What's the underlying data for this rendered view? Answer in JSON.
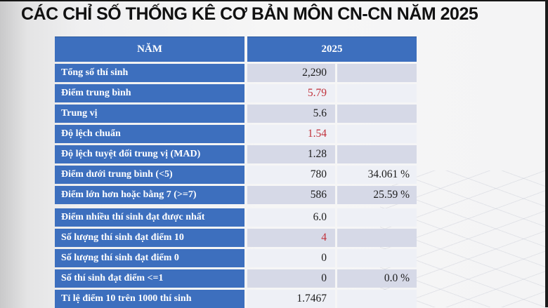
{
  "title": "CÁC CHỈ SỐ THỐNG KÊ CƠ BẢN MÔN CN-CN NĂM 2025",
  "colors": {
    "header_blue": "#3d6fbe",
    "band_dark": "#d6d9e7",
    "band_light": "#eef0f6",
    "highlight_red": "#c0303a"
  },
  "table": {
    "header": {
      "label": "NĂM",
      "value": "2025"
    },
    "rows": [
      {
        "label": "Tổng số thí sinh",
        "value": "2,290",
        "percent": "",
        "value_color": "black"
      },
      {
        "label": "Điểm trung bình",
        "value": "5.79",
        "percent": "",
        "value_color": "red"
      },
      {
        "label": "Trung vị",
        "value": "5.6",
        "percent": "",
        "value_color": "black"
      },
      {
        "label": "Độ lệch chuẩn",
        "value": "1.54",
        "percent": "",
        "value_color": "red"
      },
      {
        "label": "Độ lệch tuyệt đối trung vị (MAD)",
        "value": "1.28",
        "percent": "",
        "value_color": "black"
      },
      {
        "label": "Điểm dưới trung bình (<5)",
        "value": "780",
        "percent": "34.061 %",
        "value_color": "black"
      },
      {
        "label": "Điểm lớn hơn hoặc bằng 7 (>=7)",
        "value": "586",
        "percent": "25.59 %",
        "value_color": "black",
        "gap_after": true
      },
      {
        "label": "Điểm nhiều thí sinh đạt được nhất",
        "value": "6.0",
        "percent": "",
        "value_color": "black"
      },
      {
        "label": "Số lượng thí sinh đạt điểm 10",
        "value": "4",
        "percent": "",
        "value_color": "red"
      },
      {
        "label": "Số lượng thí sinh đạt điểm 0",
        "value": "0",
        "percent": "",
        "value_color": "black"
      },
      {
        "label": "Số thí sinh đạt điểm <=1",
        "value": "0",
        "percent": "0.0 %",
        "value_color": "black"
      },
      {
        "label": "Tỉ lệ điểm 10 trên 1000 thí sinh",
        "value": "1.7467",
        "percent": "",
        "value_color": "black"
      }
    ]
  }
}
